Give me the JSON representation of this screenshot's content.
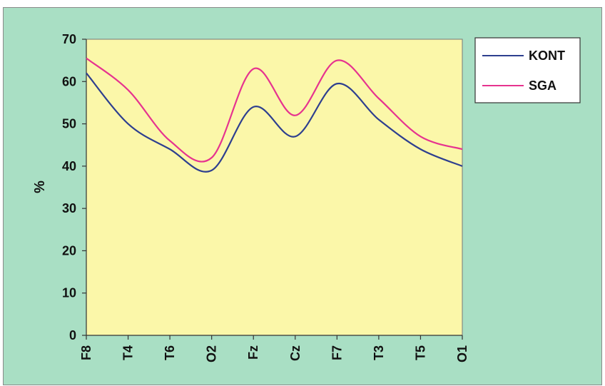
{
  "chart_data": {
    "type": "line",
    "title": "",
    "xlabel": "",
    "ylabel": "%",
    "ylim": [
      0,
      70
    ],
    "yticks": [
      0,
      10,
      20,
      30,
      40,
      50,
      60,
      70
    ],
    "categories": [
      "F8",
      "T4",
      "T6",
      "O2",
      "Fz",
      "Cz",
      "F7",
      "T3",
      "T5",
      "O1"
    ],
    "grid": false,
    "legend_position": "right",
    "series": [
      {
        "name": "KONT",
        "color": "#2e3f8f",
        "values": [
          62,
          50,
          44,
          39,
          54,
          47,
          59.5,
          51,
          44,
          40
        ]
      },
      {
        "name": "SGA",
        "color": "#e6338f",
        "values": [
          65.5,
          58,
          46,
          42,
          63,
          52,
          65,
          56,
          47,
          44
        ]
      }
    ],
    "colors": {
      "plot_background": "#fbf7a9",
      "outer_background": "#a9dfc4"
    }
  }
}
